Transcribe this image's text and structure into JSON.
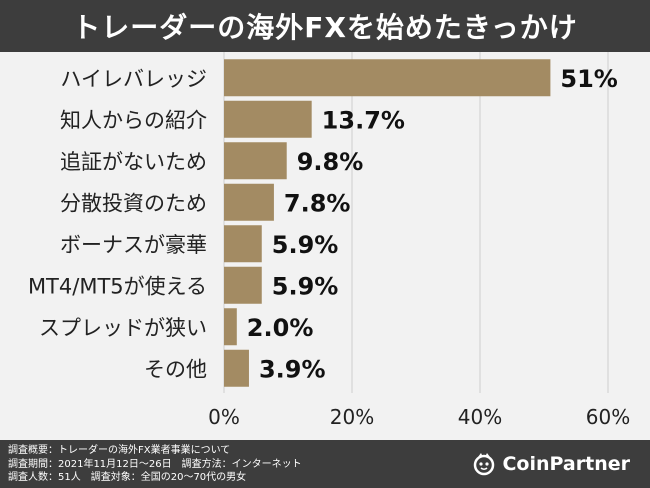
{
  "header": {
    "title": "トレーダーの海外FXを始めたきっかけ"
  },
  "chart_data": {
    "type": "bar",
    "orientation": "horizontal",
    "title": "トレーダーの海外FXを始めたきっかけ",
    "categories": [
      "ハイレバレッジ",
      "知人からの紹介",
      "追証がないため",
      "分散投資のため",
      "ボーナスが豪華",
      "MT4/MT5が使える",
      "スプレッドが狭い",
      "その他"
    ],
    "values": [
      51,
      13.7,
      9.8,
      7.8,
      5.9,
      5.9,
      2.0,
      3.9
    ],
    "value_labels": [
      "51%",
      "13.7%",
      "9.8%",
      "7.8%",
      "5.9%",
      "5.9%",
      "2.0%",
      "3.9%"
    ],
    "xlim": [
      0,
      60
    ],
    "x_ticks": [
      0,
      20,
      40,
      60
    ],
    "x_tick_labels": [
      "0%",
      "20%",
      "40%",
      "60%"
    ],
    "grid": true,
    "bar_color": "#a38b63"
  },
  "footer": {
    "notes": [
      "調査概要：トレーダーの海外FX業者事業について",
      "調査期間：2021年11月12日～26日　調査方法：インターネット",
      "調査人数：51人　調査対象：全国の20～70代の男女"
    ],
    "brand": "CoinPartner",
    "brand_icon": "coinpartner-logo-icon"
  }
}
